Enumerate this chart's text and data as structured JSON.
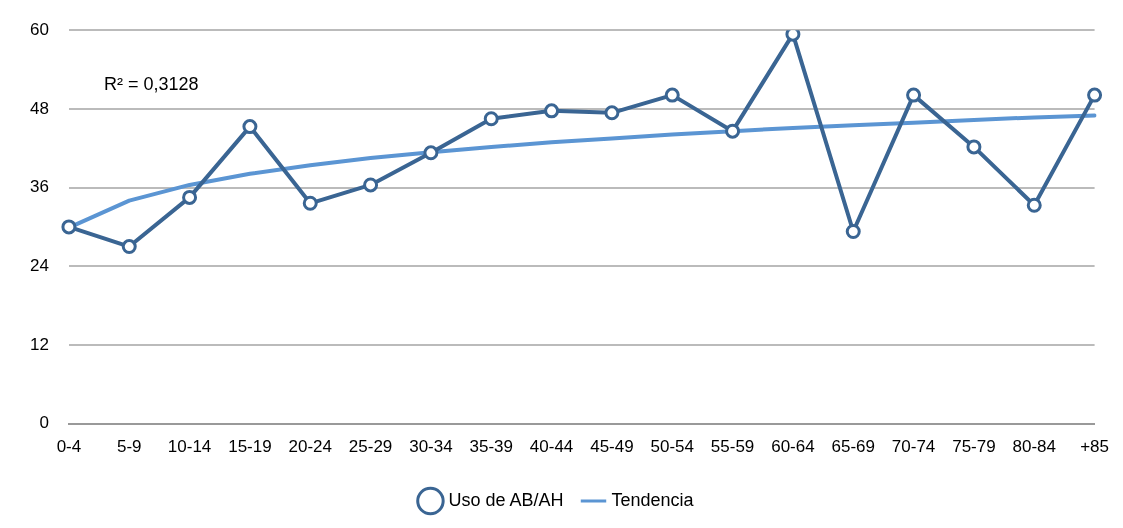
{
  "chart_data": {
    "type": "line",
    "categories": [
      "0-4",
      "5-9",
      "10-14",
      "15-19",
      "20-24",
      "25-29",
      "30-34",
      "35-39",
      "40-44",
      "45-49",
      "50-54",
      "55-59",
      "60-64",
      "65-69",
      "70-74",
      "75-79",
      "80-84",
      "+85"
    ],
    "series": [
      {
        "name": "Uso de AB/AH",
        "color": "#3a6593",
        "values": [
          30,
          27,
          34.5,
          45.3,
          33.6,
          36.4,
          41.3,
          46.5,
          47.7,
          47.4,
          50.1,
          44.6,
          59.4,
          29.3,
          50.1,
          42.2,
          33.3,
          50.1
        ]
      },
      {
        "name": "Tendencia",
        "type": "line",
        "marker": "none",
        "color": "#5b95d3",
        "values": [
          29.9,
          34.0,
          36.4,
          38.1,
          39.4,
          40.5,
          41.4,
          42.2,
          42.9,
          43.5,
          44.1,
          44.6,
          45.1,
          45.5,
          45.9,
          46.3,
          46.7,
          47.0
        ]
      }
    ],
    "ylim": [
      0,
      60
    ],
    "yticks": [
      0,
      12,
      24,
      36,
      48,
      60
    ],
    "grid": "y",
    "legend": "bottom",
    "marker": "circle",
    "line_style": "solid",
    "annotations": [
      "R² = 0,3128"
    ]
  }
}
